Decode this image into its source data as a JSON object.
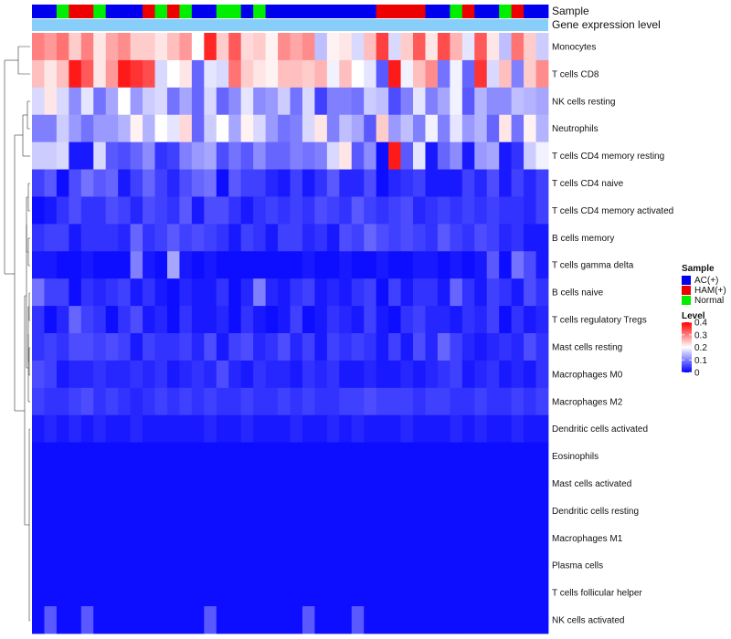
{
  "chart_data": {
    "type": "heatmap",
    "annotation_labels": [
      "Sample",
      "Gene expression level"
    ],
    "rows": [
      "Monocytes",
      "T cells CD8",
      "NK cells resting",
      "Neutrophils",
      "T cells CD4 memory resting",
      "T cells CD4 naive",
      "T cells CD4 memory activated",
      "B cells memory",
      "T cells gamma delta",
      "B cells naive",
      "T cells regulatory  Tregs",
      "Mast cells resting",
      "Macrophages M0",
      "Macrophages M2",
      "Dendritic cells activated",
      "Eosinophils",
      "Mast cells activated",
      "Dendritic cells resting",
      "Macrophages M1",
      "Plasma cells",
      "T cells follicular helper",
      "NK cells activated"
    ],
    "sample_groups": [
      "AC",
      "AC",
      "N",
      "H",
      "H",
      "N",
      "AC",
      "AC",
      "AC",
      "H",
      "N",
      "H",
      "N",
      "AC",
      "AC",
      "N",
      "N",
      "AC",
      "N",
      "AC",
      "AC",
      "AC",
      "AC",
      "AC",
      "AC",
      "AC",
      "AC",
      "AC",
      "H",
      "H",
      "H",
      "H",
      "AC",
      "AC",
      "N",
      "H",
      "AC",
      "AC",
      "N",
      "H",
      "AC",
      "AC"
    ],
    "sample_colors": {
      "AC": "#0000ee",
      "H": "#ee0000",
      "N": "#00ee00"
    },
    "expression_bar_color": "#87cefa",
    "legends": {
      "sample": {
        "title": "Sample",
        "items": [
          {
            "key": "AC",
            "label": "AC(+)",
            "color": "#0000ee"
          },
          {
            "key": "H",
            "label": "HAM(+)",
            "color": "#ee0000"
          },
          {
            "key": "N",
            "label": "Normal",
            "color": "#00ee00"
          }
        ]
      },
      "level": {
        "title": "Level",
        "ticks": [
          "0.4",
          "0.3",
          "0.2",
          "0.1",
          "0"
        ],
        "range": [
          0,
          0.4
        ],
        "low_color": "#0000ff",
        "mid_color": "#ffffff",
        "high_color": "#ff0000"
      }
    },
    "values": [
      [
        0.3,
        0.28,
        0.31,
        0.24,
        0.3,
        0.22,
        0.27,
        0.29,
        0.24,
        0.24,
        0.22,
        0.25,
        0.28,
        0.2,
        0.37,
        0.24,
        0.33,
        0.23,
        0.24,
        0.21,
        0.29,
        0.27,
        0.29,
        0.15,
        0.21,
        0.22,
        0.17,
        0.25,
        0.35,
        0.17,
        0.24,
        0.33,
        0.22,
        0.34,
        0.26,
        0.18,
        0.33,
        0.22,
        0.15,
        0.31,
        0.24,
        0.16
      ],
      [
        0.25,
        0.22,
        0.25,
        0.38,
        0.33,
        0.22,
        0.28,
        0.38,
        0.36,
        0.34,
        0.17,
        0.2,
        0.22,
        0.08,
        0.18,
        0.17,
        0.31,
        0.24,
        0.22,
        0.21,
        0.25,
        0.25,
        0.24,
        0.26,
        0.19,
        0.25,
        0.2,
        0.18,
        0.07,
        0.38,
        0.19,
        0.25,
        0.29,
        0.09,
        0.19,
        0.08,
        0.36,
        0.17,
        0.25,
        0.1,
        0.24,
        0.29
      ],
      [
        0.17,
        0.22,
        0.17,
        0.11,
        0.18,
        0.09,
        0.13,
        0.2,
        0.12,
        0.16,
        0.17,
        0.09,
        0.13,
        0.08,
        0.17,
        0.08,
        0.11,
        0.18,
        0.11,
        0.12,
        0.16,
        0.09,
        0.17,
        0.05,
        0.1,
        0.1,
        0.09,
        0.16,
        0.15,
        0.06,
        0.1,
        0.18,
        0.1,
        0.13,
        0.19,
        0.07,
        0.14,
        0.11,
        0.11,
        0.15,
        0.14,
        0.13
      ],
      [
        0.1,
        0.1,
        0.16,
        0.12,
        0.09,
        0.12,
        0.12,
        0.14,
        0.21,
        0.14,
        0.2,
        0.18,
        0.23,
        0.08,
        0.16,
        0.2,
        0.13,
        0.21,
        0.17,
        0.12,
        0.09,
        0.1,
        0.17,
        0.22,
        0.1,
        0.15,
        0.13,
        0.07,
        0.24,
        0.12,
        0.15,
        0.1,
        0.19,
        0.1,
        0.18,
        0.12,
        0.14,
        0.08,
        0.22,
        0.09,
        0.21,
        0.14
      ],
      [
        0.16,
        0.16,
        0.17,
        0.02,
        0.02,
        0.17,
        0.07,
        0.06,
        0.08,
        0.11,
        0.04,
        0.05,
        0.1,
        0.12,
        0.13,
        0.06,
        0.09,
        0.07,
        0.11,
        0.08,
        0.08,
        0.1,
        0.09,
        0.1,
        0.17,
        0.22,
        0.07,
        0.11,
        0.01,
        0.38,
        0.07,
        0.18,
        0.02,
        0.08,
        0.11,
        0.02,
        0.12,
        0.13,
        0.02,
        0.04,
        0.16,
        0.19
      ],
      [
        0.05,
        0.07,
        0.01,
        0.06,
        0.09,
        0.07,
        0.08,
        0.02,
        0.05,
        0.08,
        0.05,
        0.03,
        0.06,
        0.08,
        0.09,
        0.01,
        0.07,
        0.05,
        0.05,
        0.03,
        0.02,
        0.05,
        0.02,
        0.04,
        0.07,
        0.03,
        0.03,
        0.06,
        0.01,
        0.03,
        0.04,
        0.05,
        0.02,
        0.02,
        0.02,
        0.05,
        0.03,
        0.06,
        0.02,
        0.05,
        0.03,
        0.05
      ],
      [
        0.01,
        0.02,
        0.04,
        0.06,
        0.04,
        0.04,
        0.06,
        0.05,
        0.03,
        0.06,
        0.05,
        0.04,
        0.07,
        0.02,
        0.06,
        0.06,
        0.04,
        0.02,
        0.04,
        0.05,
        0.04,
        0.05,
        0.04,
        0.06,
        0.05,
        0.04,
        0.07,
        0.05,
        0.04,
        0.05,
        0.06,
        0.03,
        0.04,
        0.05,
        0.04,
        0.05,
        0.04,
        0.05,
        0.04,
        0.04,
        0.03,
        0.05
      ],
      [
        0.04,
        0.05,
        0.05,
        0.02,
        0.04,
        0.04,
        0.04,
        0.03,
        0.08,
        0.04,
        0.05,
        0.07,
        0.05,
        0.06,
        0.05,
        0.04,
        0.02,
        0.05,
        0.04,
        0.02,
        0.05,
        0.05,
        0.03,
        0.04,
        0.02,
        0.06,
        0.05,
        0.08,
        0.06,
        0.05,
        0.06,
        0.05,
        0.04,
        0.07,
        0.05,
        0.04,
        0.06,
        0.05,
        0.03,
        0.04,
        0.02,
        0.02
      ],
      [
        0.02,
        0.02,
        0.01,
        0.01,
        0.02,
        0.01,
        0.01,
        0.01,
        0.1,
        0.02,
        0.01,
        0.13,
        0.02,
        0.01,
        0.02,
        0.01,
        0.01,
        0.01,
        0.01,
        0.01,
        0.01,
        0.01,
        0.02,
        0.01,
        0.01,
        0.02,
        0.01,
        0.01,
        0.02,
        0.01,
        0.01,
        0.02,
        0.02,
        0.01,
        0.02,
        0.01,
        0.02,
        0.07,
        0.01,
        0.09,
        0.06,
        0.02
      ],
      [
        0.09,
        0.05,
        0.05,
        0.01,
        0.04,
        0.03,
        0.04,
        0.05,
        0.02,
        0.04,
        0.02,
        0.01,
        0.03,
        0.02,
        0.02,
        0.04,
        0.01,
        0.03,
        0.1,
        0.03,
        0.02,
        0.04,
        0.05,
        0.02,
        0.03,
        0.02,
        0.04,
        0.05,
        0.01,
        0.05,
        0.02,
        0.04,
        0.04,
        0.02,
        0.08,
        0.04,
        0.02,
        0.05,
        0.04,
        0.02,
        0.06,
        0.04
      ],
      [
        0.04,
        0.01,
        0.03,
        0.08,
        0.05,
        0.04,
        0.01,
        0.04,
        0.06,
        0.02,
        0.03,
        0.01,
        0.04,
        0.02,
        0.02,
        0.03,
        0.01,
        0.04,
        0.02,
        0.01,
        0.02,
        0.05,
        0.01,
        0.02,
        0.04,
        0.03,
        0.02,
        0.05,
        0.02,
        0.01,
        0.04,
        0.05,
        0.03,
        0.03,
        0.02,
        0.04,
        0.03,
        0.05,
        0.01,
        0.04,
        0.02,
        0.03
      ],
      [
        0.04,
        0.05,
        0.04,
        0.06,
        0.06,
        0.05,
        0.06,
        0.05,
        0.02,
        0.05,
        0.04,
        0.04,
        0.05,
        0.03,
        0.06,
        0.02,
        0.05,
        0.06,
        0.03,
        0.04,
        0.06,
        0.03,
        0.05,
        0.02,
        0.05,
        0.04,
        0.05,
        0.04,
        0.02,
        0.05,
        0.02,
        0.06,
        0.03,
        0.08,
        0.05,
        0.03,
        0.02,
        0.03,
        0.04,
        0.03,
        0.06,
        0.04
      ],
      [
        0.06,
        0.05,
        0.02,
        0.03,
        0.03,
        0.04,
        0.03,
        0.03,
        0.04,
        0.03,
        0.04,
        0.02,
        0.03,
        0.04,
        0.03,
        0.06,
        0.03,
        0.02,
        0.04,
        0.03,
        0.03,
        0.02,
        0.04,
        0.03,
        0.04,
        0.02,
        0.02,
        0.03,
        0.02,
        0.02,
        0.03,
        0.02,
        0.03,
        0.04,
        0.05,
        0.02,
        0.03,
        0.04,
        0.02,
        0.03,
        0.02,
        0.04
      ],
      [
        0.05,
        0.04,
        0.04,
        0.05,
        0.06,
        0.04,
        0.05,
        0.04,
        0.03,
        0.04,
        0.05,
        0.04,
        0.05,
        0.04,
        0.05,
        0.04,
        0.04,
        0.05,
        0.04,
        0.04,
        0.05,
        0.04,
        0.05,
        0.04,
        0.04,
        0.05,
        0.05,
        0.06,
        0.05,
        0.05,
        0.05,
        0.04,
        0.05,
        0.05,
        0.04,
        0.04,
        0.05,
        0.04,
        0.04,
        0.05,
        0.04,
        0.05
      ],
      [
        0.02,
        0.03,
        0.02,
        0.03,
        0.02,
        0.03,
        0.02,
        0.02,
        0.03,
        0.02,
        0.02,
        0.02,
        0.02,
        0.02,
        0.03,
        0.02,
        0.02,
        0.03,
        0.02,
        0.02,
        0.02,
        0.03,
        0.02,
        0.02,
        0.03,
        0.02,
        0.03,
        0.02,
        0.02,
        0.02,
        0.03,
        0.02,
        0.02,
        0.02,
        0.03,
        0.02,
        0.03,
        0.02,
        0.02,
        0.03,
        0.02,
        0.02
      ],
      [
        0.01,
        0.01,
        0.01,
        0.01,
        0.01,
        0.01,
        0.01,
        0.01,
        0.01,
        0.01,
        0.01,
        0.01,
        0.01,
        0.01,
        0.01,
        0.01,
        0.01,
        0.01,
        0.01,
        0.01,
        0.01,
        0.01,
        0.01,
        0.01,
        0.01,
        0.01,
        0.01,
        0.01,
        0.01,
        0.01,
        0.01,
        0.01,
        0.01,
        0.01,
        0.01,
        0.01,
        0.01,
        0.01,
        0.01,
        0.01,
        0.01,
        0.01
      ],
      [
        0.01,
        0.01,
        0.01,
        0.01,
        0.01,
        0.01,
        0.01,
        0.01,
        0.01,
        0.01,
        0.01,
        0.01,
        0.01,
        0.01,
        0.01,
        0.01,
        0.01,
        0.01,
        0.01,
        0.01,
        0.01,
        0.01,
        0.01,
        0.01,
        0.01,
        0.01,
        0.01,
        0.01,
        0.01,
        0.01,
        0.01,
        0.01,
        0.01,
        0.01,
        0.01,
        0.01,
        0.01,
        0.01,
        0.01,
        0.01,
        0.01,
        0.01
      ],
      [
        0.01,
        0.01,
        0.01,
        0.01,
        0.01,
        0.01,
        0.01,
        0.01,
        0.01,
        0.01,
        0.01,
        0.01,
        0.01,
        0.01,
        0.01,
        0.01,
        0.01,
        0.01,
        0.01,
        0.01,
        0.01,
        0.01,
        0.01,
        0.01,
        0.01,
        0.01,
        0.01,
        0.01,
        0.01,
        0.01,
        0.01,
        0.01,
        0.01,
        0.01,
        0.01,
        0.01,
        0.01,
        0.01,
        0.01,
        0.01,
        0.01,
        0.01
      ],
      [
        0.01,
        0.01,
        0.01,
        0.01,
        0.01,
        0.01,
        0.01,
        0.01,
        0.01,
        0.01,
        0.01,
        0.01,
        0.01,
        0.01,
        0.01,
        0.01,
        0.01,
        0.01,
        0.01,
        0.01,
        0.01,
        0.01,
        0.01,
        0.01,
        0.01,
        0.01,
        0.01,
        0.01,
        0.01,
        0.01,
        0.01,
        0.01,
        0.01,
        0.01,
        0.01,
        0.01,
        0.01,
        0.01,
        0.01,
        0.01,
        0.01,
        0.01
      ],
      [
        0.01,
        0.01,
        0.01,
        0.01,
        0.01,
        0.01,
        0.01,
        0.01,
        0.01,
        0.01,
        0.01,
        0.01,
        0.01,
        0.01,
        0.01,
        0.01,
        0.01,
        0.01,
        0.01,
        0.01,
        0.01,
        0.01,
        0.01,
        0.01,
        0.01,
        0.01,
        0.01,
        0.01,
        0.01,
        0.01,
        0.01,
        0.01,
        0.01,
        0.01,
        0.01,
        0.01,
        0.01,
        0.01,
        0.01,
        0.01,
        0.01,
        0.01
      ],
      [
        0.01,
        0.01,
        0.01,
        0.01,
        0.01,
        0.01,
        0.01,
        0.01,
        0.01,
        0.01,
        0.01,
        0.01,
        0.01,
        0.01,
        0.01,
        0.01,
        0.01,
        0.01,
        0.01,
        0.01,
        0.01,
        0.01,
        0.01,
        0.01,
        0.01,
        0.01,
        0.01,
        0.01,
        0.01,
        0.01,
        0.01,
        0.01,
        0.01,
        0.01,
        0.01,
        0.01,
        0.01,
        0.01,
        0.01,
        0.01,
        0.01,
        0.01
      ],
      [
        0.01,
        0.07,
        0.01,
        0.01,
        0.07,
        0.01,
        0.01,
        0.01,
        0.01,
        0.01,
        0.01,
        0.01,
        0.01,
        0.01,
        0.07,
        0.01,
        0.01,
        0.01,
        0.01,
        0.01,
        0.01,
        0.01,
        0.07,
        0.01,
        0.01,
        0.01,
        0.07,
        0.01,
        0.01,
        0.01,
        0.01,
        0.01,
        0.01,
        0.01,
        0.01,
        0.01,
        0.01,
        0.01,
        0.01,
        0.01,
        0.01,
        0.01
      ]
    ]
  }
}
